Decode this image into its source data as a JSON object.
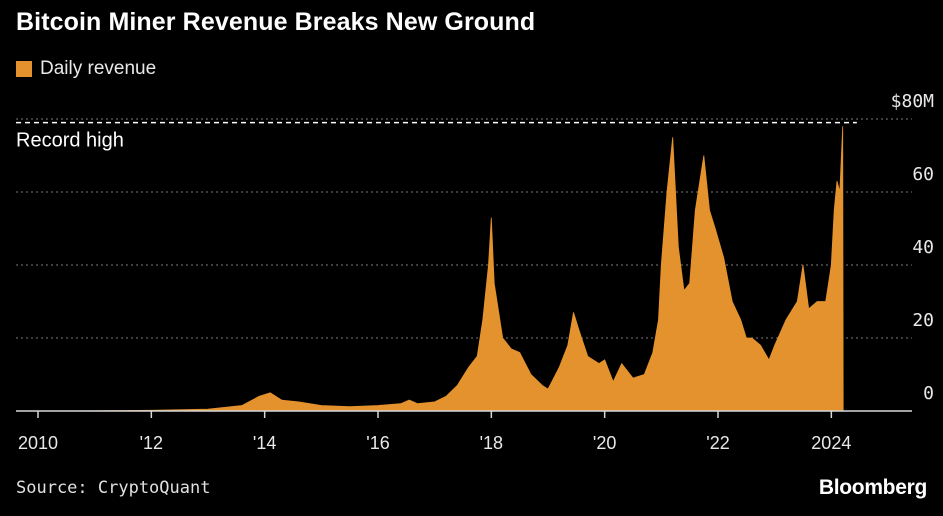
{
  "title": "Bitcoin Miner Revenue Breaks New Ground",
  "legend": {
    "label": "Daily revenue",
    "color": "#E3922D"
  },
  "source": "Source: CryptoQuant",
  "brand": "Bloomberg",
  "colors": {
    "background": "#000000",
    "series": "#E3922D",
    "grid": "#7a7a7a",
    "text": "#ffffff"
  },
  "chart_data": {
    "type": "area",
    "title": "Bitcoin Miner Revenue Breaks New Ground",
    "xlabel": "",
    "ylabel": "",
    "xlim": [
      2010.0,
      2024.7
    ],
    "ylim": [
      0,
      80
    ],
    "x_ticks": [
      2010,
      2012,
      2014,
      2016,
      2018,
      2020,
      2022,
      2024
    ],
    "x_tick_labels": [
      "2010",
      "'12",
      "'14",
      "'16",
      "'18",
      "'20",
      "'22",
      "2024"
    ],
    "y_ticks": [
      0,
      20,
      40,
      60,
      80
    ],
    "y_tick_labels": [
      "0",
      "20",
      "40",
      "60",
      "$80M"
    ],
    "grid": "horizontal dotted",
    "legend_position": "top-left",
    "annotations": [
      {
        "label": "Record high",
        "y": 79
      }
    ],
    "series": [
      {
        "name": "Daily revenue",
        "x": [
          2010.0,
          2011.0,
          2012.0,
          2013.0,
          2013.6,
          2013.9,
          2014.1,
          2014.3,
          2014.6,
          2015.0,
          2015.5,
          2016.0,
          2016.4,
          2016.55,
          2016.7,
          2017.0,
          2017.2,
          2017.4,
          2017.6,
          2017.75,
          2017.85,
          2017.95,
          2018.0,
          2018.05,
          2018.2,
          2018.35,
          2018.5,
          2018.7,
          2018.9,
          2019.0,
          2019.2,
          2019.35,
          2019.45,
          2019.55,
          2019.7,
          2019.9,
          2020.0,
          2020.15,
          2020.3,
          2020.5,
          2020.7,
          2020.85,
          2020.95,
          2021.0,
          2021.1,
          2021.2,
          2021.3,
          2021.4,
          2021.5,
          2021.6,
          2021.75,
          2021.85,
          2021.95,
          2022.1,
          2022.25,
          2022.4,
          2022.5,
          2022.6,
          2022.75,
          2022.9,
          2023.0,
          2023.2,
          2023.4,
          2023.5,
          2023.6,
          2023.75,
          2023.9,
          2024.0,
          2024.05,
          2024.1,
          2024.15,
          2024.2,
          2024.21
        ],
        "values": [
          0,
          0.05,
          0.2,
          0.5,
          1.5,
          4,
          5,
          3,
          2.5,
          1.5,
          1.2,
          1.5,
          2,
          3,
          2,
          2.5,
          4,
          7,
          12,
          15,
          25,
          40,
          53,
          35,
          20,
          17,
          16,
          10,
          7,
          6,
          12,
          18,
          27,
          22,
          15,
          13,
          14,
          8,
          13,
          9,
          10,
          16,
          25,
          40,
          60,
          75,
          45,
          33,
          35,
          55,
          70,
          55,
          50,
          42,
          30,
          25,
          20,
          20,
          18,
          14,
          18,
          25,
          30,
          40,
          28,
          30,
          30,
          40,
          55,
          63,
          60,
          78,
          0
        ]
      }
    ]
  }
}
